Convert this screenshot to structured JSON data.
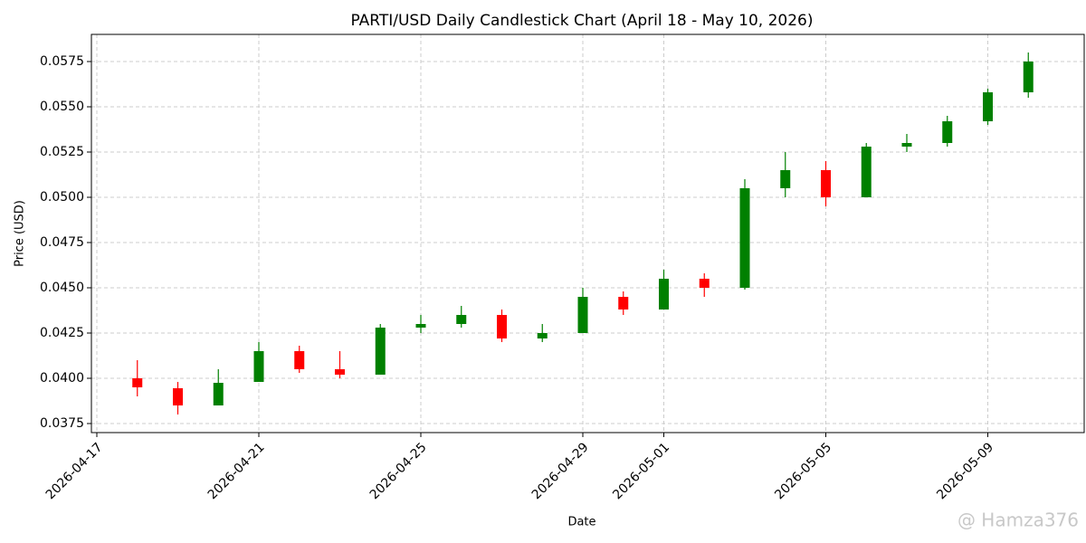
{
  "chart_data": {
    "type": "candlestick",
    "title": "PARTI/USD Daily Candlestick Chart (April 18 - May 10, 2026)",
    "x_label": "Date",
    "y_label": "Price (USD)",
    "annotation": "@ Hamza376",
    "up_color": "#008000",
    "down_color": "#ff0000",
    "grid": true,
    "x": [
      "2026-04-18",
      "2026-04-19",
      "2026-04-20",
      "2026-04-21",
      "2026-04-22",
      "2026-04-23",
      "2026-04-24",
      "2026-04-25",
      "2026-04-26",
      "2026-04-27",
      "2026-04-28",
      "2026-04-29",
      "2026-04-30",
      "2026-05-01",
      "2026-05-02",
      "2026-05-03",
      "2026-05-04",
      "2026-05-05",
      "2026-05-06",
      "2026-05-07",
      "2026-05-08",
      "2026-05-09",
      "2026-05-10"
    ],
    "open": [
      0.04,
      0.03945,
      0.0385,
      0.0398,
      0.0415,
      0.0405,
      0.0402,
      0.0428,
      0.043,
      0.0435,
      0.0422,
      0.0425,
      0.0445,
      0.0438,
      0.0455,
      0.045,
      0.0505,
      0.0515,
      0.05,
      0.0528,
      0.053,
      0.0542,
      0.0558
    ],
    "high": [
      0.041,
      0.0398,
      0.0405,
      0.042,
      0.0418,
      0.0415,
      0.043,
      0.0435,
      0.044,
      0.0438,
      0.043,
      0.045,
      0.0448,
      0.046,
      0.0458,
      0.051,
      0.0525,
      0.052,
      0.053,
      0.0535,
      0.0545,
      0.056,
      0.058
    ],
    "low": [
      0.039,
      0.038,
      0.0385,
      0.0398,
      0.0403,
      0.04,
      0.0402,
      0.0425,
      0.0428,
      0.042,
      0.042,
      0.0425,
      0.0435,
      0.0438,
      0.0445,
      0.0449,
      0.05,
      0.0495,
      0.05,
      0.0525,
      0.0528,
      0.054,
      0.0555
    ],
    "close": [
      0.0395,
      0.0385,
      0.03975,
      0.0415,
      0.0405,
      0.0402,
      0.0428,
      0.043,
      0.0435,
      0.0422,
      0.0425,
      0.0445,
      0.0438,
      0.0455,
      0.045,
      0.0505,
      0.0515,
      0.05,
      0.0528,
      0.053,
      0.0542,
      0.0558,
      0.0575
    ],
    "xlim": [
      "2026-04-17",
      "2026-05-11"
    ],
    "xticks": [
      "2026-04-17",
      "2026-04-21",
      "2026-04-25",
      "2026-04-29",
      "2026-05-01",
      "2026-05-05",
      "2026-05-09"
    ],
    "ylim": [
      0.037,
      0.059
    ],
    "yticks": [
      0.0375,
      {
        "value": 0.04,
        "label": "0.0400"
      },
      0.0425,
      {
        "value": 0.045,
        "label": "0.0450"
      },
      0.0475,
      {
        "value": 0.05,
        "label": "0.0500"
      },
      0.0525,
      {
        "value": 0.055,
        "label": "0.0550"
      },
      0.0575
    ]
  }
}
